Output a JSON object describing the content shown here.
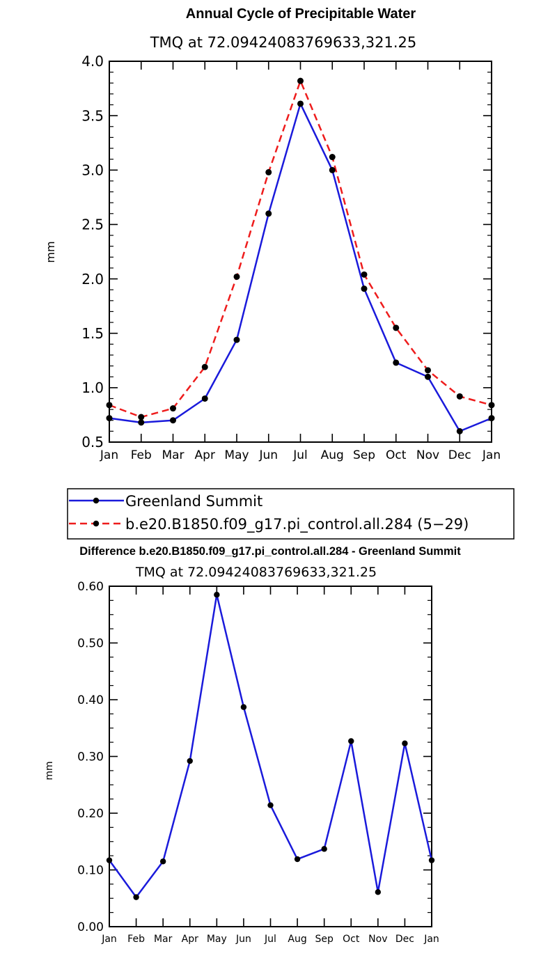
{
  "colors": {
    "series_a": "#1a1adb",
    "series_b": "#ee1c1c",
    "marker": "#000000"
  },
  "legend": {
    "entries": [
      {
        "label": "Greenland Summit",
        "dashed": false
      },
      {
        "label": "b.e20.B1850.f09_g17.pi_control.all.284 (5−29)",
        "dashed": true
      }
    ]
  },
  "chart_data": [
    {
      "type": "line",
      "title": "Annual Cycle of Precipitable Water",
      "subtitle": "TMQ  at  72.09424083769633,321.25",
      "xlabel": "",
      "ylabel": "mm",
      "categories": [
        "Jan",
        "Feb",
        "Mar",
        "Apr",
        "May",
        "Jun",
        "Jul",
        "Aug",
        "Sep",
        "Oct",
        "Nov",
        "Dec",
        "Jan"
      ],
      "ylim": [
        0.5,
        4.0
      ],
      "yticks": [
        0.5,
        1.0,
        1.5,
        2.0,
        2.5,
        3.0,
        3.5,
        4.0
      ],
      "ytick_labels": [
        "0.5",
        "1.0",
        "1.5",
        "2.0",
        "2.5",
        "3.0",
        "3.5",
        "4.0"
      ],
      "series": [
        {
          "name": "Greenland Summit",
          "style": "solid",
          "values": [
            0.72,
            0.68,
            0.7,
            0.9,
            1.44,
            2.6,
            3.61,
            3.0,
            1.91,
            1.23,
            1.1,
            0.6,
            0.72
          ]
        },
        {
          "name": "b.e20.B1850.f09_g17.pi_control.all.284 (5-29)",
          "style": "dashed",
          "values": [
            0.84,
            0.73,
            0.81,
            1.19,
            2.02,
            2.98,
            3.82,
            3.12,
            2.04,
            1.55,
            1.16,
            0.92,
            0.84
          ]
        }
      ]
    },
    {
      "type": "line",
      "title": "Difference b.e20.B1850.f09_g17.pi_control.all.284 - Greenland Summit",
      "subtitle": "TMQ  at  72.09424083769633,321.25",
      "xlabel": "",
      "ylabel": "mm",
      "categories": [
        "Jan",
        "Feb",
        "Mar",
        "Apr",
        "May",
        "Jun",
        "Jul",
        "Aug",
        "Sep",
        "Oct",
        "Nov",
        "Dec",
        "Jan"
      ],
      "ylim": [
        0.0,
        0.6
      ],
      "yticks": [
        0.0,
        0.1,
        0.2,
        0.3,
        0.4,
        0.5,
        0.6
      ],
      "ytick_labels": [
        "0.00",
        "0.10",
        "0.20",
        "0.30",
        "0.40",
        "0.50",
        "0.60"
      ],
      "series": [
        {
          "name": "Difference",
          "style": "solid",
          "values": [
            0.117,
            0.052,
            0.115,
            0.292,
            0.585,
            0.387,
            0.214,
            0.119,
            0.137,
            0.327,
            0.061,
            0.323,
            0.117
          ]
        }
      ]
    }
  ]
}
